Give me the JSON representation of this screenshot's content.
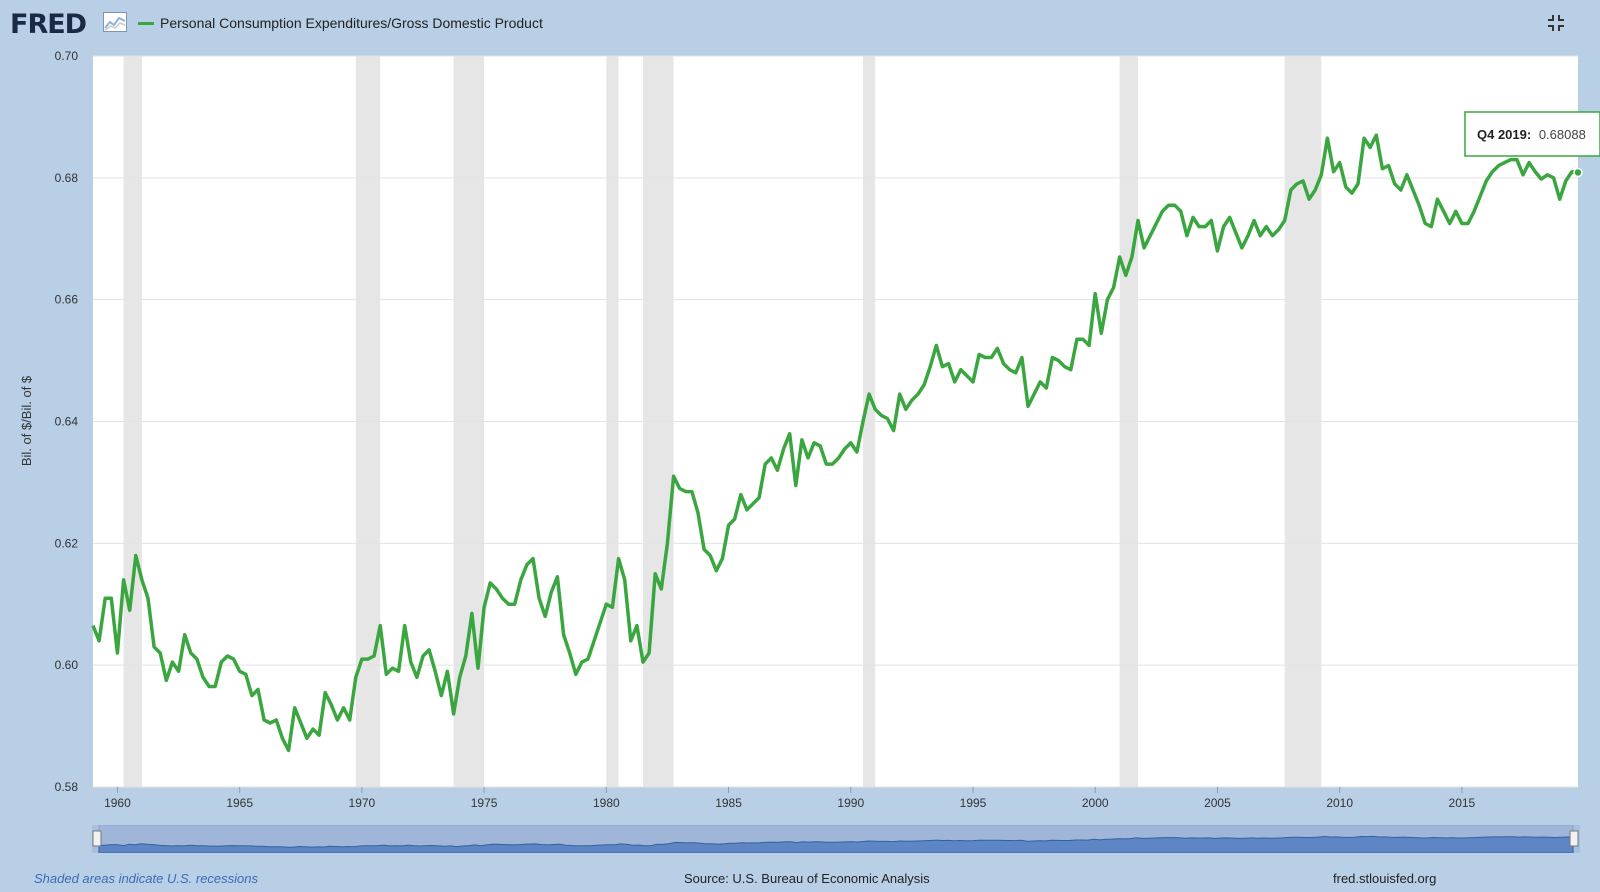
{
  "header": {
    "logo_text": "FRED",
    "legend_label": "Personal Consumption Expenditures/Gross Domestic Product",
    "line_color": "#3aa63f"
  },
  "tooltip": {
    "period": "Q4 2019:",
    "value": "0.68088"
  },
  "footer": {
    "note": "Shaded areas indicate U.S. recessions",
    "source": "Source: U.S. Bureau of Economic Analysis",
    "url": "fred.stlouisfed.org"
  },
  "chart_data": {
    "type": "line",
    "title": "",
    "xlabel": "",
    "ylabel": "Bil. of $/Bil. of $",
    "xlim": [
      1959.0,
      2019.75
    ],
    "ylim": [
      0.58,
      0.7
    ],
    "yticks": [
      0.58,
      0.6,
      0.62,
      0.64,
      0.66,
      0.68,
      0.7
    ],
    "ytick_labels": [
      "0.58",
      "0.60",
      "0.62",
      "0.64",
      "0.66",
      "0.68",
      "0.70"
    ],
    "xticks": [
      1960,
      1965,
      1970,
      1975,
      1980,
      1985,
      1990,
      1995,
      2000,
      2005,
      2010,
      2015
    ],
    "xtick_labels": [
      "1960",
      "1965",
      "1970",
      "1975",
      "1980",
      "1985",
      "1990",
      "1995",
      "2000",
      "2005",
      "2010",
      "2015"
    ],
    "grid": true,
    "recessions": [
      [
        1960.25,
        1961.0
      ],
      [
        1969.75,
        1970.75
      ],
      [
        1973.75,
        1975.0
      ],
      [
        1980.0,
        1980.5
      ],
      [
        1981.5,
        1982.75
      ],
      [
        1990.5,
        1991.0
      ],
      [
        2001.0,
        2001.75
      ],
      [
        2007.75,
        2009.25
      ]
    ],
    "series": [
      {
        "points": [
          [
            1959.0,
            0.6065
          ],
          [
            1959.25,
            0.604
          ],
          [
            1959.5,
            0.611
          ],
          [
            1959.75,
            0.611
          ],
          [
            1960.0,
            0.602
          ],
          [
            1960.25,
            0.614
          ],
          [
            1960.5,
            0.609
          ],
          [
            1960.75,
            0.618
          ],
          [
            1961.0,
            0.614
          ],
          [
            1961.25,
            0.611
          ],
          [
            1961.5,
            0.603
          ],
          [
            1961.75,
            0.602
          ],
          [
            1962.0,
            0.5975
          ],
          [
            1962.25,
            0.6005
          ],
          [
            1962.5,
            0.599
          ],
          [
            1962.75,
            0.605
          ],
          [
            1963.0,
            0.602
          ],
          [
            1963.25,
            0.601
          ],
          [
            1963.5,
            0.598
          ],
          [
            1963.75,
            0.5965
          ],
          [
            1964.0,
            0.5965
          ],
          [
            1964.25,
            0.6005
          ],
          [
            1964.5,
            0.6015
          ],
          [
            1964.75,
            0.601
          ],
          [
            1965.0,
            0.599
          ],
          [
            1965.25,
            0.5985
          ],
          [
            1965.5,
            0.595
          ],
          [
            1965.75,
            0.596
          ],
          [
            1966.0,
            0.591
          ],
          [
            1966.25,
            0.5905
          ],
          [
            1966.5,
            0.591
          ],
          [
            1966.75,
            0.588
          ],
          [
            1967.0,
            0.586
          ],
          [
            1967.25,
            0.593
          ],
          [
            1967.5,
            0.5905
          ],
          [
            1967.75,
            0.588
          ],
          [
            1968.0,
            0.5895
          ],
          [
            1968.25,
            0.5885
          ],
          [
            1968.5,
            0.5955
          ],
          [
            1968.75,
            0.5935
          ],
          [
            1969.0,
            0.591
          ],
          [
            1969.25,
            0.593
          ],
          [
            1969.5,
            0.591
          ],
          [
            1969.75,
            0.598
          ],
          [
            1970.0,
            0.601
          ],
          [
            1970.25,
            0.601
          ],
          [
            1970.5,
            0.6015
          ],
          [
            1970.75,
            0.6065
          ],
          [
            1971.0,
            0.5985
          ],
          [
            1971.25,
            0.5995
          ],
          [
            1971.5,
            0.599
          ],
          [
            1971.75,
            0.6065
          ],
          [
            1972.0,
            0.6005
          ],
          [
            1972.25,
            0.598
          ],
          [
            1972.5,
            0.6015
          ],
          [
            1972.75,
            0.6025
          ],
          [
            1973.0,
            0.599
          ],
          [
            1973.25,
            0.595
          ],
          [
            1973.5,
            0.599
          ],
          [
            1973.75,
            0.592
          ],
          [
            1974.0,
            0.598
          ],
          [
            1974.25,
            0.6015
          ],
          [
            1974.5,
            0.6085
          ],
          [
            1974.75,
            0.5995
          ],
          [
            1975.0,
            0.6095
          ],
          [
            1975.25,
            0.6135
          ],
          [
            1975.5,
            0.6125
          ],
          [
            1975.75,
            0.611
          ],
          [
            1976.0,
            0.61
          ],
          [
            1976.25,
            0.61
          ],
          [
            1976.5,
            0.614
          ],
          [
            1976.75,
            0.6165
          ],
          [
            1977.0,
            0.6175
          ],
          [
            1977.25,
            0.611
          ],
          [
            1977.5,
            0.608
          ],
          [
            1977.75,
            0.612
          ],
          [
            1978.0,
            0.6145
          ],
          [
            1978.25,
            0.605
          ],
          [
            1978.5,
            0.602
          ],
          [
            1978.75,
            0.5985
          ],
          [
            1979.0,
            0.6005
          ],
          [
            1979.25,
            0.601
          ],
          [
            1979.5,
            0.604
          ],
          [
            1979.75,
            0.607
          ],
          [
            1980.0,
            0.61
          ],
          [
            1980.25,
            0.6095
          ],
          [
            1980.5,
            0.6175
          ],
          [
            1980.75,
            0.614
          ],
          [
            1981.0,
            0.604
          ],
          [
            1981.25,
            0.6065
          ],
          [
            1981.5,
            0.6005
          ],
          [
            1981.75,
            0.602
          ],
          [
            1982.0,
            0.615
          ],
          [
            1982.25,
            0.6125
          ],
          [
            1982.5,
            0.62
          ],
          [
            1982.75,
            0.631
          ],
          [
            1983.0,
            0.629
          ],
          [
            1983.25,
            0.6285
          ],
          [
            1983.5,
            0.6285
          ],
          [
            1983.75,
            0.625
          ],
          [
            1984.0,
            0.619
          ],
          [
            1984.25,
            0.618
          ],
          [
            1984.5,
            0.6155
          ],
          [
            1984.75,
            0.6175
          ],
          [
            1985.0,
            0.623
          ],
          [
            1985.25,
            0.624
          ],
          [
            1985.5,
            0.628
          ],
          [
            1985.75,
            0.6255
          ],
          [
            1986.0,
            0.6265
          ],
          [
            1986.25,
            0.6275
          ],
          [
            1986.5,
            0.633
          ],
          [
            1986.75,
            0.634
          ],
          [
            1987.0,
            0.632
          ],
          [
            1987.25,
            0.6355
          ],
          [
            1987.5,
            0.638
          ],
          [
            1987.75,
            0.6295
          ],
          [
            1988.0,
            0.637
          ],
          [
            1988.25,
            0.634
          ],
          [
            1988.5,
            0.6365
          ],
          [
            1988.75,
            0.636
          ],
          [
            1989.0,
            0.633
          ],
          [
            1989.25,
            0.633
          ],
          [
            1989.5,
            0.634
          ],
          [
            1989.75,
            0.6355
          ],
          [
            1990.0,
            0.6365
          ],
          [
            1990.25,
            0.635
          ],
          [
            1990.5,
            0.64
          ],
          [
            1990.75,
            0.6445
          ],
          [
            1991.0,
            0.642
          ],
          [
            1991.25,
            0.641
          ],
          [
            1991.5,
            0.6405
          ],
          [
            1991.75,
            0.6385
          ],
          [
            1992.0,
            0.6445
          ],
          [
            1992.25,
            0.642
          ],
          [
            1992.5,
            0.6435
          ],
          [
            1992.75,
            0.6445
          ],
          [
            1993.0,
            0.646
          ],
          [
            1993.25,
            0.649
          ],
          [
            1993.5,
            0.6525
          ],
          [
            1993.75,
            0.649
          ],
          [
            1994.0,
            0.6495
          ],
          [
            1994.25,
            0.6465
          ],
          [
            1994.5,
            0.6485
          ],
          [
            1994.75,
            0.6475
          ],
          [
            1995.0,
            0.6465
          ],
          [
            1995.25,
            0.651
          ],
          [
            1995.5,
            0.6505
          ],
          [
            1995.75,
            0.6505
          ],
          [
            1996.0,
            0.652
          ],
          [
            1996.25,
            0.6495
          ],
          [
            1996.5,
            0.6485
          ],
          [
            1996.75,
            0.648
          ],
          [
            1997.0,
            0.6505
          ],
          [
            1997.25,
            0.6425
          ],
          [
            1997.5,
            0.6445
          ],
          [
            1997.75,
            0.6465
          ],
          [
            1998.0,
            0.6455
          ],
          [
            1998.25,
            0.6505
          ],
          [
            1998.5,
            0.65
          ],
          [
            1998.75,
            0.649
          ],
          [
            1999.0,
            0.6485
          ],
          [
            1999.25,
            0.6535
          ],
          [
            1999.5,
            0.6535
          ],
          [
            1999.75,
            0.6525
          ],
          [
            2000.0,
            0.661
          ],
          [
            2000.25,
            0.6545
          ],
          [
            2000.5,
            0.66
          ],
          [
            2000.75,
            0.662
          ],
          [
            2001.0,
            0.667
          ],
          [
            2001.25,
            0.664
          ],
          [
            2001.5,
            0.667
          ],
          [
            2001.75,
            0.673
          ],
          [
            2002.0,
            0.6685
          ],
          [
            2002.25,
            0.6705
          ],
          [
            2002.5,
            0.6725
          ],
          [
            2002.75,
            0.6745
          ],
          [
            2003.0,
            0.6755
          ],
          [
            2003.25,
            0.6755
          ],
          [
            2003.5,
            0.6745
          ],
          [
            2003.75,
            0.6705
          ],
          [
            2004.0,
            0.6735
          ],
          [
            2004.25,
            0.672
          ],
          [
            2004.5,
            0.672
          ],
          [
            2004.75,
            0.673
          ],
          [
            2005.0,
            0.668
          ],
          [
            2005.25,
            0.672
          ],
          [
            2005.5,
            0.6735
          ],
          [
            2005.75,
            0.671
          ],
          [
            2006.0,
            0.6685
          ],
          [
            2006.25,
            0.6705
          ],
          [
            2006.5,
            0.673
          ],
          [
            2006.75,
            0.6705
          ],
          [
            2007.0,
            0.672
          ],
          [
            2007.25,
            0.6705
          ],
          [
            2007.5,
            0.6715
          ],
          [
            2007.75,
            0.673
          ],
          [
            2008.0,
            0.678
          ],
          [
            2008.25,
            0.679
          ],
          [
            2008.5,
            0.6795
          ],
          [
            2008.75,
            0.6765
          ],
          [
            2009.0,
            0.678
          ],
          [
            2009.25,
            0.6805
          ],
          [
            2009.5,
            0.6865
          ],
          [
            2009.75,
            0.681
          ],
          [
            2010.0,
            0.6825
          ],
          [
            2010.25,
            0.6785
          ],
          [
            2010.5,
            0.6775
          ],
          [
            2010.75,
            0.679
          ],
          [
            2011.0,
            0.6865
          ],
          [
            2011.25,
            0.685
          ],
          [
            2011.5,
            0.687
          ],
          [
            2011.75,
            0.6815
          ],
          [
            2012.0,
            0.682
          ],
          [
            2012.25,
            0.679
          ],
          [
            2012.5,
            0.678
          ],
          [
            2012.75,
            0.6805
          ],
          [
            2013.0,
            0.678
          ],
          [
            2013.25,
            0.6755
          ],
          [
            2013.5,
            0.6725
          ],
          [
            2013.75,
            0.672
          ],
          [
            2014.0,
            0.6765
          ],
          [
            2014.25,
            0.6745
          ],
          [
            2014.5,
            0.6725
          ],
          [
            2014.75,
            0.6745
          ],
          [
            2015.0,
            0.6725
          ],
          [
            2015.25,
            0.6725
          ],
          [
            2015.5,
            0.6745
          ],
          [
            2015.75,
            0.677
          ],
          [
            2016.0,
            0.6795
          ],
          [
            2016.25,
            0.681
          ],
          [
            2016.5,
            0.682
          ],
          [
            2016.75,
            0.6825
          ],
          [
            2017.0,
            0.683
          ],
          [
            2017.25,
            0.683
          ],
          [
            2017.5,
            0.6805
          ],
          [
            2017.75,
            0.6825
          ],
          [
            2018.0,
            0.681
          ],
          [
            2018.25,
            0.6798
          ],
          [
            2018.5,
            0.6805
          ],
          [
            2018.75,
            0.68
          ],
          [
            2019.0,
            0.6765
          ],
          [
            2019.25,
            0.6795
          ],
          [
            2019.5,
            0.681
          ],
          [
            2019.75,
            0.68088
          ]
        ]
      }
    ]
  }
}
